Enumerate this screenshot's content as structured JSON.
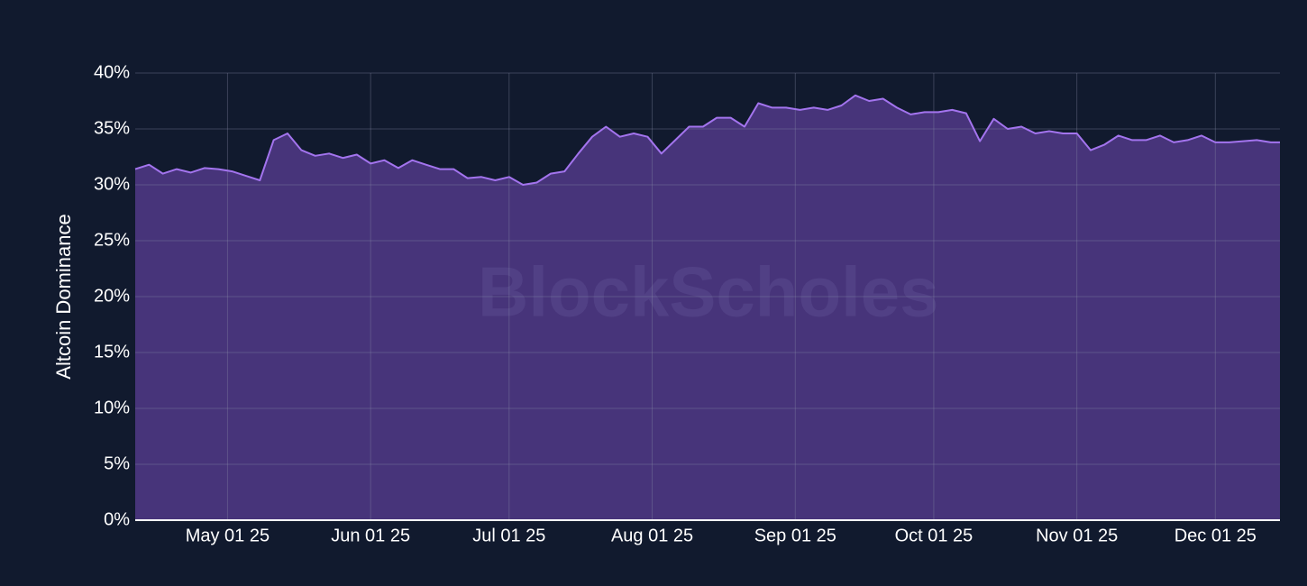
{
  "chart_data": {
    "type": "area",
    "y_label": "Altcoin Dominance",
    "watermark": "BlockScholes",
    "color": "#a374ee",
    "fill_color": "#47347a",
    "grid": true,
    "x": [
      "2025-04-11",
      "2025-04-14",
      "2025-04-17",
      "2025-04-20",
      "2025-04-23",
      "2025-04-26",
      "2025-04-29",
      "2025-05-02",
      "2025-05-05",
      "2025-05-08",
      "2025-05-11",
      "2025-05-14",
      "2025-05-17",
      "2025-05-20",
      "2025-05-23",
      "2025-05-26",
      "2025-05-29",
      "2025-06-01",
      "2025-06-04",
      "2025-06-07",
      "2025-06-10",
      "2025-06-13",
      "2025-06-16",
      "2025-06-19",
      "2025-06-22",
      "2025-06-25",
      "2025-06-28",
      "2025-07-01",
      "2025-07-04",
      "2025-07-07",
      "2025-07-10",
      "2025-07-13",
      "2025-07-16",
      "2025-07-19",
      "2025-07-22",
      "2025-07-25",
      "2025-07-28",
      "2025-07-31",
      "2025-08-03",
      "2025-08-06",
      "2025-08-09",
      "2025-08-12",
      "2025-08-15",
      "2025-08-18",
      "2025-08-21",
      "2025-08-24",
      "2025-08-27",
      "2025-08-30",
      "2025-09-02",
      "2025-09-05",
      "2025-09-08",
      "2025-09-11",
      "2025-09-14",
      "2025-09-17",
      "2025-09-20",
      "2025-09-23",
      "2025-09-26",
      "2025-09-29",
      "2025-10-02",
      "2025-10-05",
      "2025-10-08",
      "2025-10-11",
      "2025-10-14",
      "2025-10-17",
      "2025-10-20",
      "2025-10-23",
      "2025-10-26",
      "2025-10-29",
      "2025-11-01",
      "2025-11-04",
      "2025-11-07",
      "2025-11-10",
      "2025-11-13",
      "2025-11-16",
      "2025-11-19",
      "2025-11-22",
      "2025-11-25",
      "2025-11-28",
      "2025-12-01",
      "2025-12-04",
      "2025-12-07",
      "2025-12-10",
      "2025-12-13",
      "2025-12-15"
    ],
    "values": [
      31.4,
      31.8,
      31.0,
      31.4,
      31.1,
      31.5,
      31.4,
      31.2,
      30.8,
      30.4,
      34.0,
      34.6,
      33.1,
      32.6,
      32.8,
      32.4,
      32.7,
      31.9,
      32.2,
      31.5,
      32.2,
      31.8,
      31.4,
      31.4,
      30.6,
      30.7,
      30.4,
      30.7,
      30.0,
      30.2,
      31.0,
      31.2,
      32.8,
      34.3,
      35.2,
      34.3,
      34.6,
      34.3,
      32.8,
      34.0,
      35.2,
      35.2,
      36.0,
      36.0,
      35.2,
      37.3,
      36.9,
      36.9,
      36.7,
      36.9,
      36.7,
      37.1,
      38.0,
      37.5,
      37.7,
      36.9,
      36.3,
      36.5,
      36.5,
      36.7,
      36.4,
      33.9,
      35.9,
      35.0,
      35.2,
      34.6,
      34.8,
      34.6,
      34.6,
      33.1,
      33.6,
      34.4,
      34.0,
      34.0,
      34.4,
      33.8,
      34.0,
      34.4,
      33.8,
      33.8,
      33.9,
      34.0,
      33.8,
      33.8
    ],
    "xlim": [
      "2025-04-11",
      "2025-12-15"
    ],
    "xticks": [
      {
        "value": "2025-05-01",
        "label": "May 01 25"
      },
      {
        "value": "2025-06-01",
        "label": "Jun 01 25"
      },
      {
        "value": "2025-07-01",
        "label": "Jul 01 25"
      },
      {
        "value": "2025-08-01",
        "label": "Aug 01 25"
      },
      {
        "value": "2025-09-01",
        "label": "Sep 01 25"
      },
      {
        "value": "2025-10-01",
        "label": "Oct 01 25"
      },
      {
        "value": "2025-11-01",
        "label": "Nov 01 25"
      },
      {
        "value": "2025-12-01",
        "label": "Dec 01 25"
      }
    ],
    "ylim": [
      0,
      40
    ],
    "yticks": [
      {
        "value": 0,
        "label": "0%"
      },
      {
        "value": 5,
        "label": "5%"
      },
      {
        "value": 10,
        "label": "10%"
      },
      {
        "value": 15,
        "label": "15%"
      },
      {
        "value": 20,
        "label": "20%"
      },
      {
        "value": 25,
        "label": "25%"
      },
      {
        "value": 30,
        "label": "30%"
      },
      {
        "value": 35,
        "label": "35%"
      },
      {
        "value": 40,
        "label": "40%"
      }
    ]
  }
}
